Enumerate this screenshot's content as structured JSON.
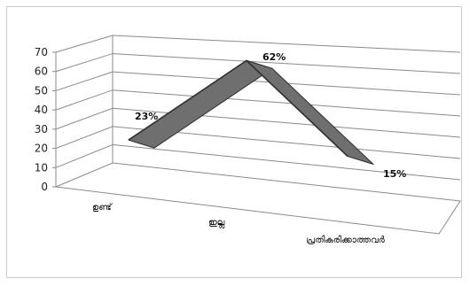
{
  "chart_data": {
    "type": "line",
    "style": "3d-line",
    "categories": [
      "ഉണ്ട്",
      "ഇല്ല",
      "പ്രതികരിക്കാത്തവർ"
    ],
    "values": [
      23,
      62,
      15
    ],
    "data_labels": [
      "23%",
      "62%",
      "15%"
    ],
    "ylim": [
      0,
      70
    ],
    "yticks": [
      "0",
      "10",
      "20",
      "30",
      "40",
      "50",
      "60",
      "70"
    ],
    "grid": true,
    "legend": "none",
    "colors": {
      "series_face": "#6f6f6f",
      "series_edge": "#2f2f2f",
      "grid": "#8a8a8a"
    }
  }
}
